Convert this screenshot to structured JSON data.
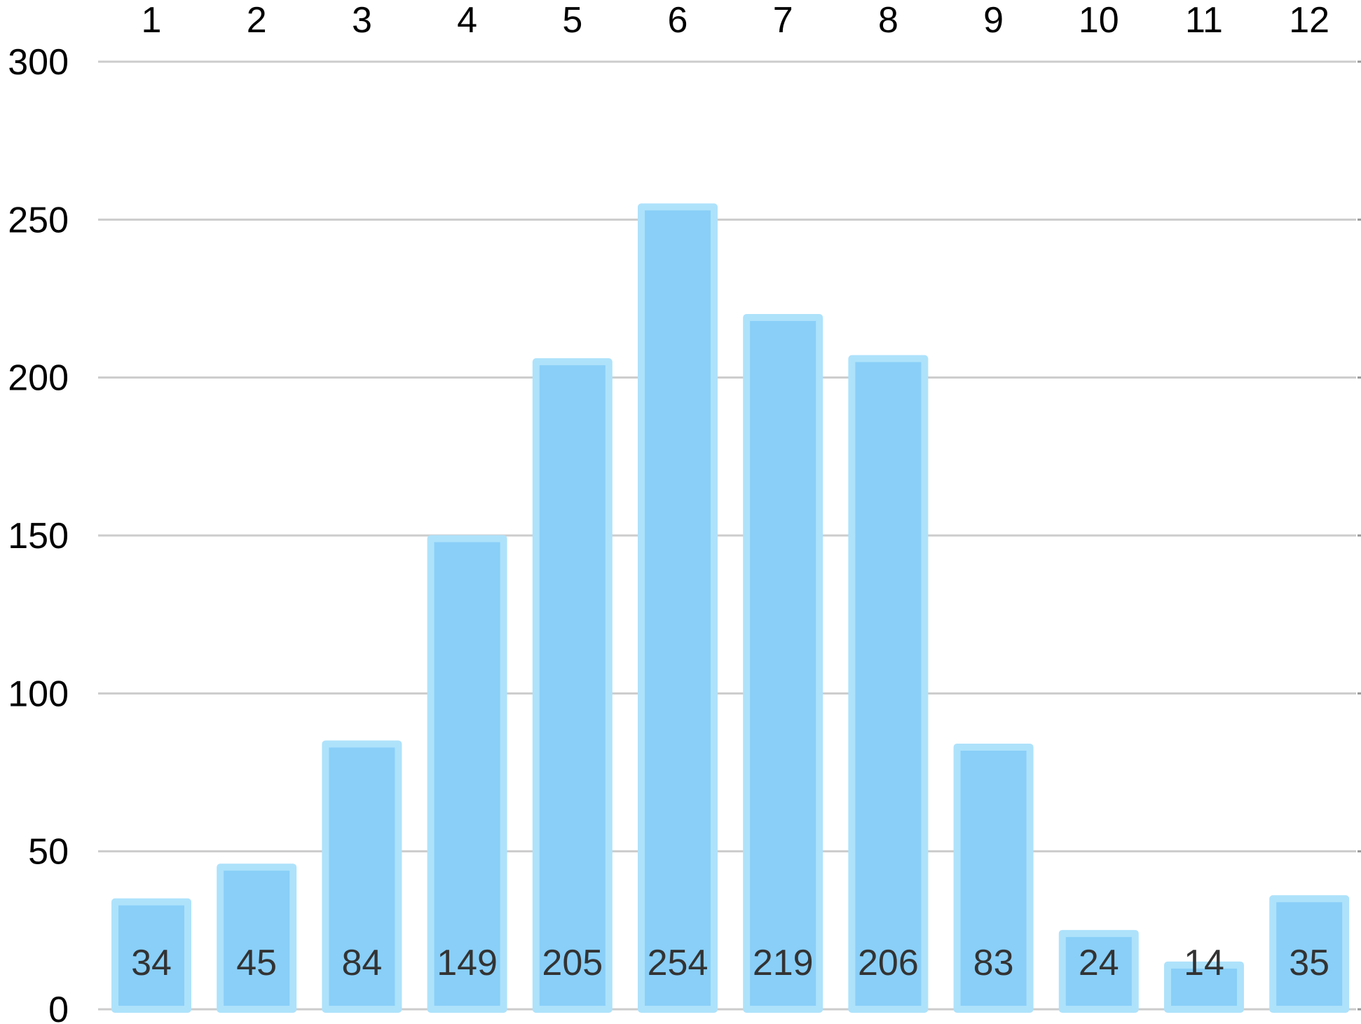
{
  "chart_data": {
    "type": "bar",
    "categories": [
      "1",
      "2",
      "3",
      "4",
      "5",
      "6",
      "7",
      "8",
      "9",
      "10",
      "11",
      "12"
    ],
    "values": [
      34,
      45,
      84,
      149,
      205,
      254,
      219,
      206,
      83,
      24,
      14,
      35
    ],
    "data_labels": [
      "34",
      "45",
      "84",
      "149",
      "205",
      "254",
      "219",
      "206",
      "83",
      "24",
      "14",
      "35"
    ],
    "yticks": [
      "0",
      "50",
      "100",
      "150",
      "200",
      "250",
      "300"
    ],
    "ylim": [
      0,
      300
    ],
    "category_axis_position": "top",
    "data_label_position": "inside-bottom",
    "grid": true,
    "legend": "none",
    "title": "",
    "xlabel": "",
    "ylabel": "",
    "colors": {
      "bar_fill": "#89cff8",
      "bar_border": "#aee2fb",
      "gridline": "#cccccc",
      "axis_text": "#000000",
      "data_label_text": "#333333"
    }
  }
}
